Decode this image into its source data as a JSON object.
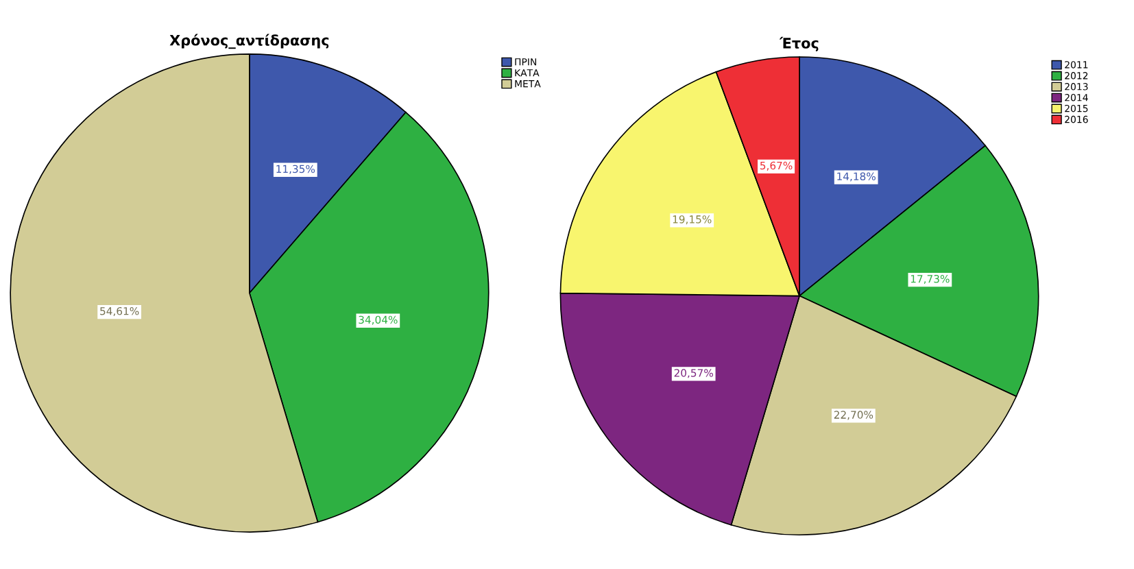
{
  "chart_data": [
    {
      "type": "pie",
      "title": "Χρόνος_αντίδρασης",
      "categories": [
        "ΠΡΙΝ",
        "ΚΑΤΑ",
        "ΜΕΤΑ"
      ],
      "values": [
        11.35,
        34.04,
        54.61
      ],
      "colors": [
        "#3e58ac",
        "#2eb042",
        "#d2cc96"
      ],
      "value_labels": [
        "11,35%",
        "34,04%",
        "54,61%"
      ],
      "legend": "top right"
    },
    {
      "type": "pie",
      "title": "Έτος",
      "categories": [
        "2011",
        "2012",
        "2013",
        "2014",
        "2015",
        "2016"
      ],
      "values": [
        14.18,
        17.73,
        22.7,
        20.57,
        19.15,
        5.67
      ],
      "colors": [
        "#3e58ac",
        "#2eb042",
        "#d2cc96",
        "#7d2680",
        "#f8f56e",
        "#ee2f36"
      ],
      "value_labels": [
        "14,18%",
        "17,73%",
        "22,70%",
        "20,57%",
        "19,15%",
        "5,67%"
      ],
      "legend": "top right"
    }
  ]
}
